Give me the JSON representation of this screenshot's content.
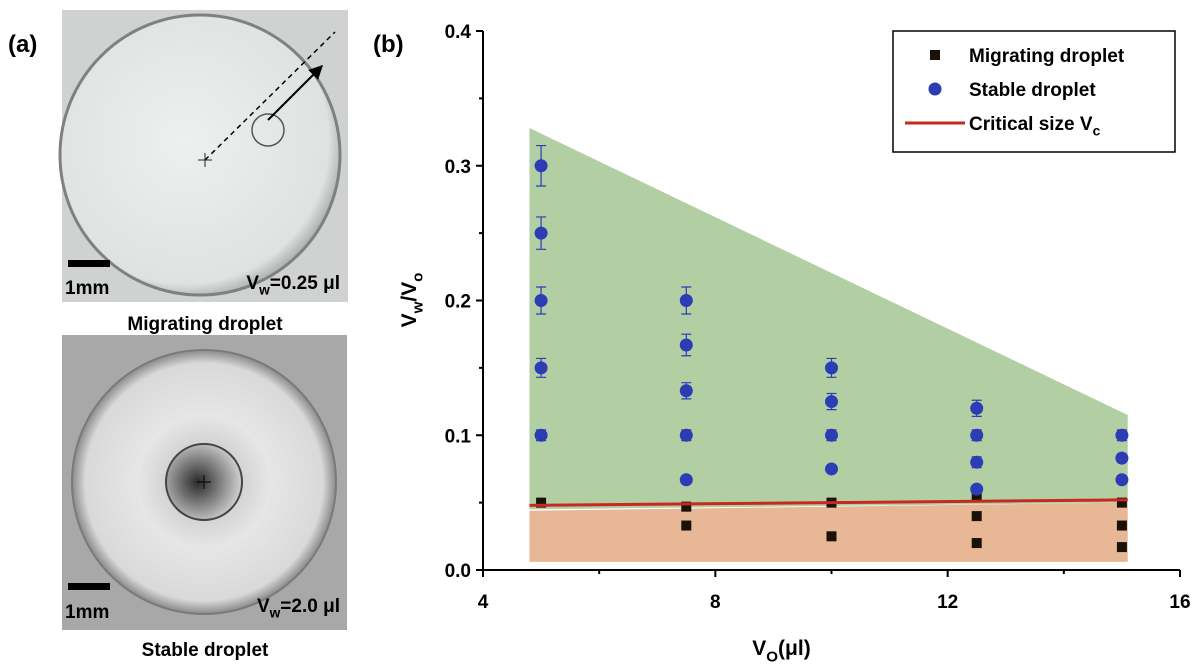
{
  "panel_a": {
    "label": "(a)",
    "photos": [
      {
        "scale": "1mm",
        "volume": [
          {
            "text": "V"
          },
          {
            "text": "w",
            "sub": true
          },
          {
            "text": "=0.25 μl"
          }
        ],
        "caption": "Migrating droplet"
      },
      {
        "scale": "1mm",
        "volume": [
          {
            "text": "V"
          },
          {
            "text": "w",
            "sub": true
          },
          {
            "text": "=2.0 μl"
          }
        ],
        "caption": "Stable droplet"
      }
    ]
  },
  "chart_data": {
    "type": "scatter",
    "panel_label": "(b)",
    "xlabel": [
      {
        "text": "V"
      },
      {
        "text": "O",
        "sub": true
      },
      {
        "text": "(μl)"
      }
    ],
    "ylabel": [
      {
        "text": "V"
      },
      {
        "text": "w",
        "sub": true
      },
      {
        "text": "/V"
      },
      {
        "text": "o",
        "sub": true
      }
    ],
    "xlim": [
      4,
      16
    ],
    "ylim": [
      0,
      0.4
    ],
    "xticks": [
      4,
      8,
      12,
      16
    ],
    "xminor": [
      6,
      10,
      14
    ],
    "yticks": [
      {
        "value": 0,
        "label": "0.0"
      },
      0.1,
      0.2,
      0.3,
      0.4
    ],
    "yminor": [
      0.05,
      0.15,
      0.25,
      0.35
    ],
    "legend": "upper right",
    "regions": [
      {
        "color": "#b2cfa3",
        "x": [
          4.8,
          15.1
        ],
        "upper": [
          0.328,
          0.115
        ],
        "lower": [
          0.045,
          0.05
        ]
      },
      {
        "color": "#e8b795",
        "x": [
          4.8,
          15.1
        ],
        "upper": [
          0.044,
          0.05
        ],
        "lower": [
          0.006,
          0.006
        ]
      }
    ],
    "series": [
      {
        "name": [
          {
            "text": "Migrating droplet"
          }
        ],
        "marker": "square",
        "color": "#1a1208",
        "x": [
          5,
          7.5,
          7.5,
          10,
          10,
          12.5,
          12.5,
          12.5,
          15,
          15,
          15
        ],
        "values": [
          0.05,
          0.047,
          0.033,
          0.05,
          0.025,
          0.055,
          0.04,
          0.02,
          0.05,
          0.033,
          0.017
        ]
      },
      {
        "name": [
          {
            "text": "Stable droplet"
          }
        ],
        "marker": "circle",
        "color": "#2b3cb4",
        "x": [
          5,
          5,
          5,
          5,
          5,
          7.5,
          7.5,
          7.5,
          7.5,
          7.5,
          10,
          10,
          10,
          10,
          12.5,
          12.5,
          12.5,
          12.5,
          15,
          15,
          15
        ],
        "values": [
          0.1,
          0.15,
          0.2,
          0.25,
          0.3,
          0.067,
          0.1,
          0.133,
          0.167,
          0.2,
          0.075,
          0.1,
          0.125,
          0.15,
          0.06,
          0.08,
          0.1,
          0.12,
          0.067,
          0.083,
          0.1
        ],
        "errors": [
          0.004,
          0.007,
          0.01,
          0.012,
          0.015,
          0,
          0.004,
          0.006,
          0.008,
          0.01,
          0,
          0.004,
          0.006,
          0.007,
          0,
          0.004,
          0.004,
          0.006,
          0,
          0.003,
          0.004
        ]
      },
      {
        "name": [
          {
            "text": "Critical size V"
          },
          {
            "text": "c",
            "sub": true
          }
        ],
        "marker": "line",
        "color": "#c8281e",
        "x": [
          4.8,
          15.1
        ],
        "values": [
          0.048,
          0.052
        ]
      }
    ]
  }
}
